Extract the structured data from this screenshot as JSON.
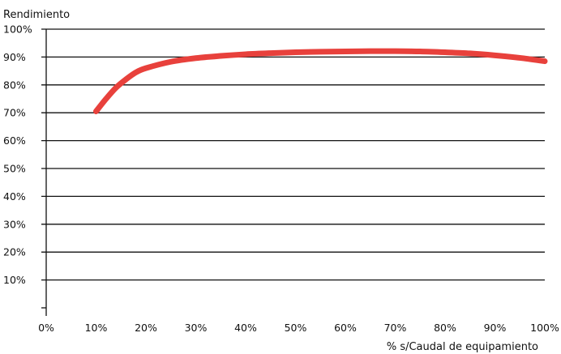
{
  "chart_data": {
    "type": "line",
    "ylabel": "Rendimiento",
    "xlabel": "% s/Caudal de equipamiento",
    "xlim": [
      0,
      100
    ],
    "ylim": [
      0,
      100
    ],
    "x_ticks": [
      "0%",
      "10%",
      "20%",
      "30%",
      "40%",
      "50%",
      "60%",
      "70%",
      "80%",
      "90%",
      "100%"
    ],
    "y_ticks": [
      "10%",
      "20%",
      "30%",
      "40%",
      "50%",
      "60%",
      "70%",
      "80%",
      "90%",
      "100%"
    ],
    "grid": "horizontal",
    "series": [
      {
        "color": "#e8413c",
        "x": [
          10,
          12,
          14,
          16,
          18,
          20,
          25,
          30,
          35,
          40,
          45,
          50,
          55,
          60,
          65,
          70,
          75,
          80,
          85,
          90,
          95,
          100
        ],
        "y": [
          70.5,
          75,
          79,
          82,
          84.5,
          86,
          88.3,
          89.6,
          90.4,
          91,
          91.4,
          91.7,
          91.9,
          92,
          92.1,
          92.1,
          92,
          91.7,
          91.3,
          90.6,
          89.7,
          88.5
        ]
      }
    ]
  }
}
